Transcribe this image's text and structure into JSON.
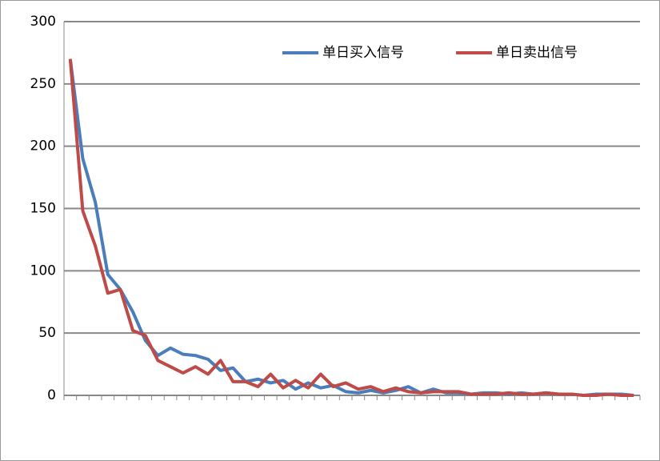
{
  "chart_data": {
    "type": "line",
    "categories": [
      null,
      null,
      null,
      null,
      null,
      null,
      null,
      null,
      null,
      null,
      null,
      null,
      null,
      null,
      null,
      null,
      null,
      null,
      null,
      null,
      null,
      null,
      null,
      null,
      null,
      null,
      null,
      null,
      null,
      null,
      null,
      null,
      null,
      null,
      null,
      null,
      null,
      null,
      null,
      null,
      null,
      null,
      null,
      null,
      null,
      null
    ],
    "series": [
      {
        "name": "单日买入信号",
        "color": "#4a7ebb",
        "values": [
          270,
          190,
          155,
          97,
          85,
          67,
          44,
          32,
          38,
          33,
          32,
          29,
          20,
          22,
          11,
          13,
          10,
          12,
          5,
          10,
          6,
          8,
          3,
          2,
          4,
          2,
          4,
          7,
          2,
          5,
          2,
          2,
          1,
          2,
          2,
          1,
          2,
          1,
          2,
          1,
          1,
          0,
          1,
          1,
          1,
          0
        ]
      },
      {
        "name": "单日卖出信号",
        "color": "#be4b48",
        "values": [
          270,
          148,
          120,
          82,
          85,
          52,
          48,
          28,
          23,
          18,
          23,
          17,
          28,
          11,
          11,
          7,
          17,
          6,
          12,
          6,
          17,
          7,
          10,
          5,
          7,
          3,
          6,
          3,
          2,
          3,
          3,
          3,
          1,
          1,
          1,
          2,
          1,
          1,
          2,
          1,
          1,
          0,
          0,
          1,
          0,
          0
        ]
      }
    ],
    "ylim": [
      0,
      300
    ],
    "yticks": [
      0,
      50,
      100,
      150,
      200,
      250,
      300
    ],
    "grid": true,
    "legend": "top-right"
  }
}
